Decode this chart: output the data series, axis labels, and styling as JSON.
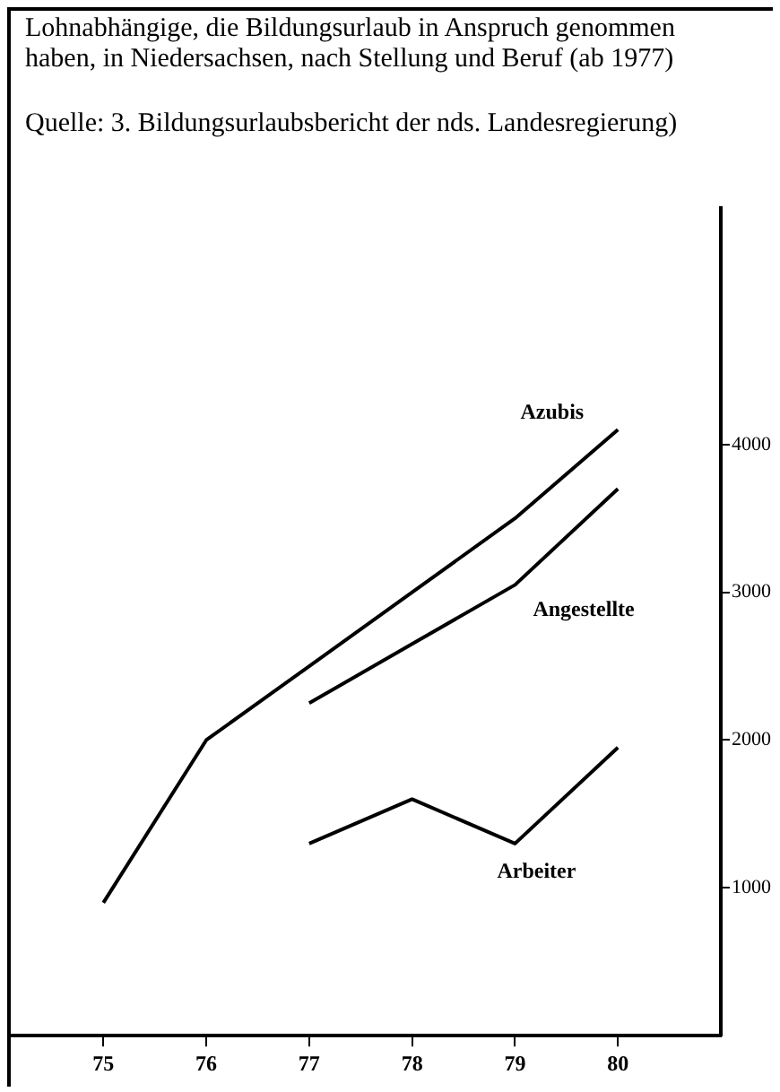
{
  "chart_data": {
    "type": "line",
    "title": "Lohnabhängige, die Bildungsurlaub in Anspruch genommen haben, in Niedersachsen, nach Stellung und Beruf (ab 1977)",
    "annotations": [
      "Quelle: 3. Bildungsurlaubsbericht der nds. Landesregierung)"
    ],
    "series": [
      {
        "name": "Azubis",
        "color": "#000000",
        "x": [
          75,
          76,
          77,
          78,
          79,
          80
        ],
        "values": [
          900,
          2000,
          2500,
          3000,
          3500,
          4100
        ]
      },
      {
        "name": "Angestellte",
        "color": "#000000",
        "x": [
          77,
          78,
          79,
          80
        ],
        "values": [
          2250,
          2650,
          3050,
          3700
        ]
      },
      {
        "name": "Arbeiter",
        "color": "#000000",
        "x": [
          77,
          78,
          79,
          80
        ],
        "values": [
          1300,
          1600,
          1300,
          1950
        ]
      }
    ],
    "xlim": [
      74.1,
      81
    ],
    "xticks": [
      75,
      76,
      77,
      78,
      79,
      80
    ],
    "ylim": [
      0,
      5600
    ],
    "yticks": [
      1000,
      2000,
      3000,
      4000
    ],
    "grid": false,
    "legend": false,
    "marker": "none",
    "line_style": "solid"
  }
}
